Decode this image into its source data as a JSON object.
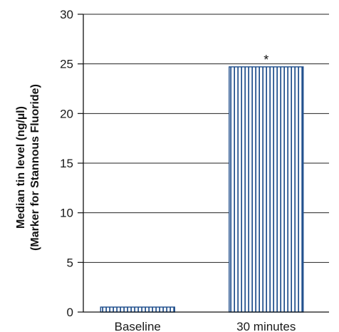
{
  "chart_data": {
    "type": "bar",
    "categories": [
      "Baseline",
      "30 minutes"
    ],
    "values": [
      0.5,
      24.7
    ],
    "annotations": [
      "",
      "*"
    ],
    "ylabel_lines": [
      "Median tin level (ng/µl)",
      "(Marker for Stannous Fluoride)"
    ],
    "ylim": [
      0,
      30
    ],
    "yticks": [
      0,
      5,
      10,
      15,
      20,
      25,
      30
    ],
    "grid": true,
    "bar_color": "#1f4e8c",
    "stripe_color": "#ffffff"
  }
}
